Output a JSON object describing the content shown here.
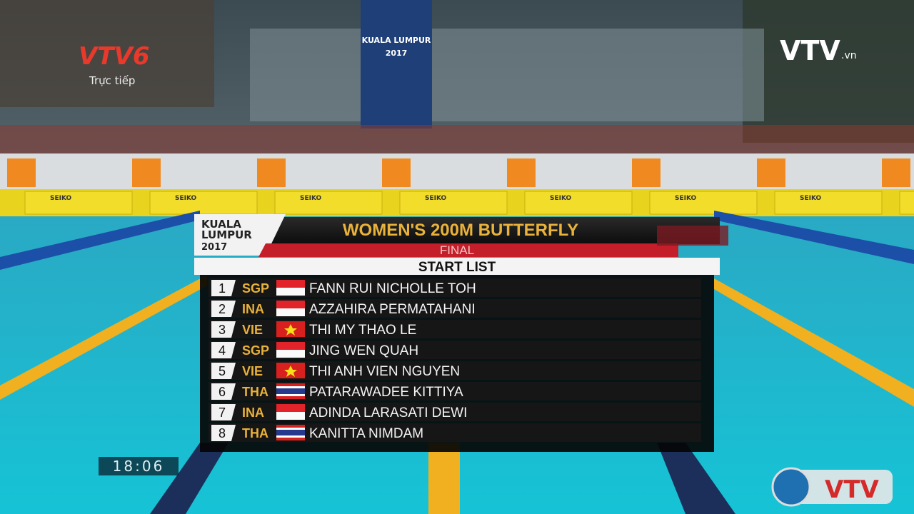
{
  "channel": {
    "name": "VTV6",
    "status": "Trực tiếp"
  },
  "venue_banner": {
    "city": "KUALA LUMPUR",
    "year": "2017"
  },
  "broadcaster": {
    "logo": "VTV",
    "domain": ".vn"
  },
  "sponsor": "SEIKO",
  "graphic": {
    "games": {
      "city_line1": "KUALA",
      "city_line2": "LUMPUR",
      "year": "2017"
    },
    "title": "WOMEN'S 200M BUTTERFLY",
    "stage": "FINAL",
    "heading": "START LIST",
    "rows": [
      {
        "lane": "1",
        "country": "SGP",
        "name": "FANN RUI NICHOLLE TOH"
      },
      {
        "lane": "2",
        "country": "INA",
        "name": "AZZAHIRA PERMATAHANI"
      },
      {
        "lane": "3",
        "country": "VIE",
        "name": "THI MY THAO LE"
      },
      {
        "lane": "4",
        "country": "SGP",
        "name": "JING WEN QUAH"
      },
      {
        "lane": "5",
        "country": "VIE",
        "name": "THI ANH VIEN NGUYEN"
      },
      {
        "lane": "6",
        "country": "THA",
        "name": "PATARAWADEE KITTIYA"
      },
      {
        "lane": "7",
        "country": "INA",
        "name": "ADINDA LARASATI DEWI"
      },
      {
        "lane": "8",
        "country": "THA",
        "name": "KANITTA NIMDAM"
      }
    ]
  },
  "clock": "18:06",
  "corner_logo": "VTV"
}
